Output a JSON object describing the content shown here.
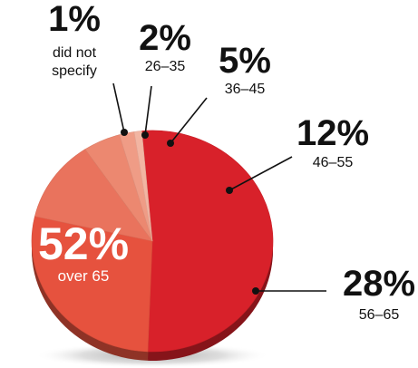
{
  "chart_data": {
    "type": "pie",
    "style": "3d-exploded-tilted",
    "slices": [
      {
        "label": "over 65",
        "value": 52,
        "display": "52%",
        "color": "#d8212a"
      },
      {
        "label": "56–65",
        "value": 28,
        "display": "28%",
        "color": "#e6523e"
      },
      {
        "label": "46–55",
        "value": 12,
        "display": "12%",
        "color": "#e9735d"
      },
      {
        "label": "36–45",
        "value": 5,
        "display": "5%",
        "color": "#ec8870"
      },
      {
        "label": "26–35",
        "value": 2,
        "display": "2%",
        "color": "#ef9c86"
      },
      {
        "label": "did not specify",
        "value": 1,
        "display": "1%",
        "color": "#f2b5a2"
      }
    ],
    "label_lines": {
      "did not specify": [
        "did not",
        "specify"
      ]
    }
  }
}
